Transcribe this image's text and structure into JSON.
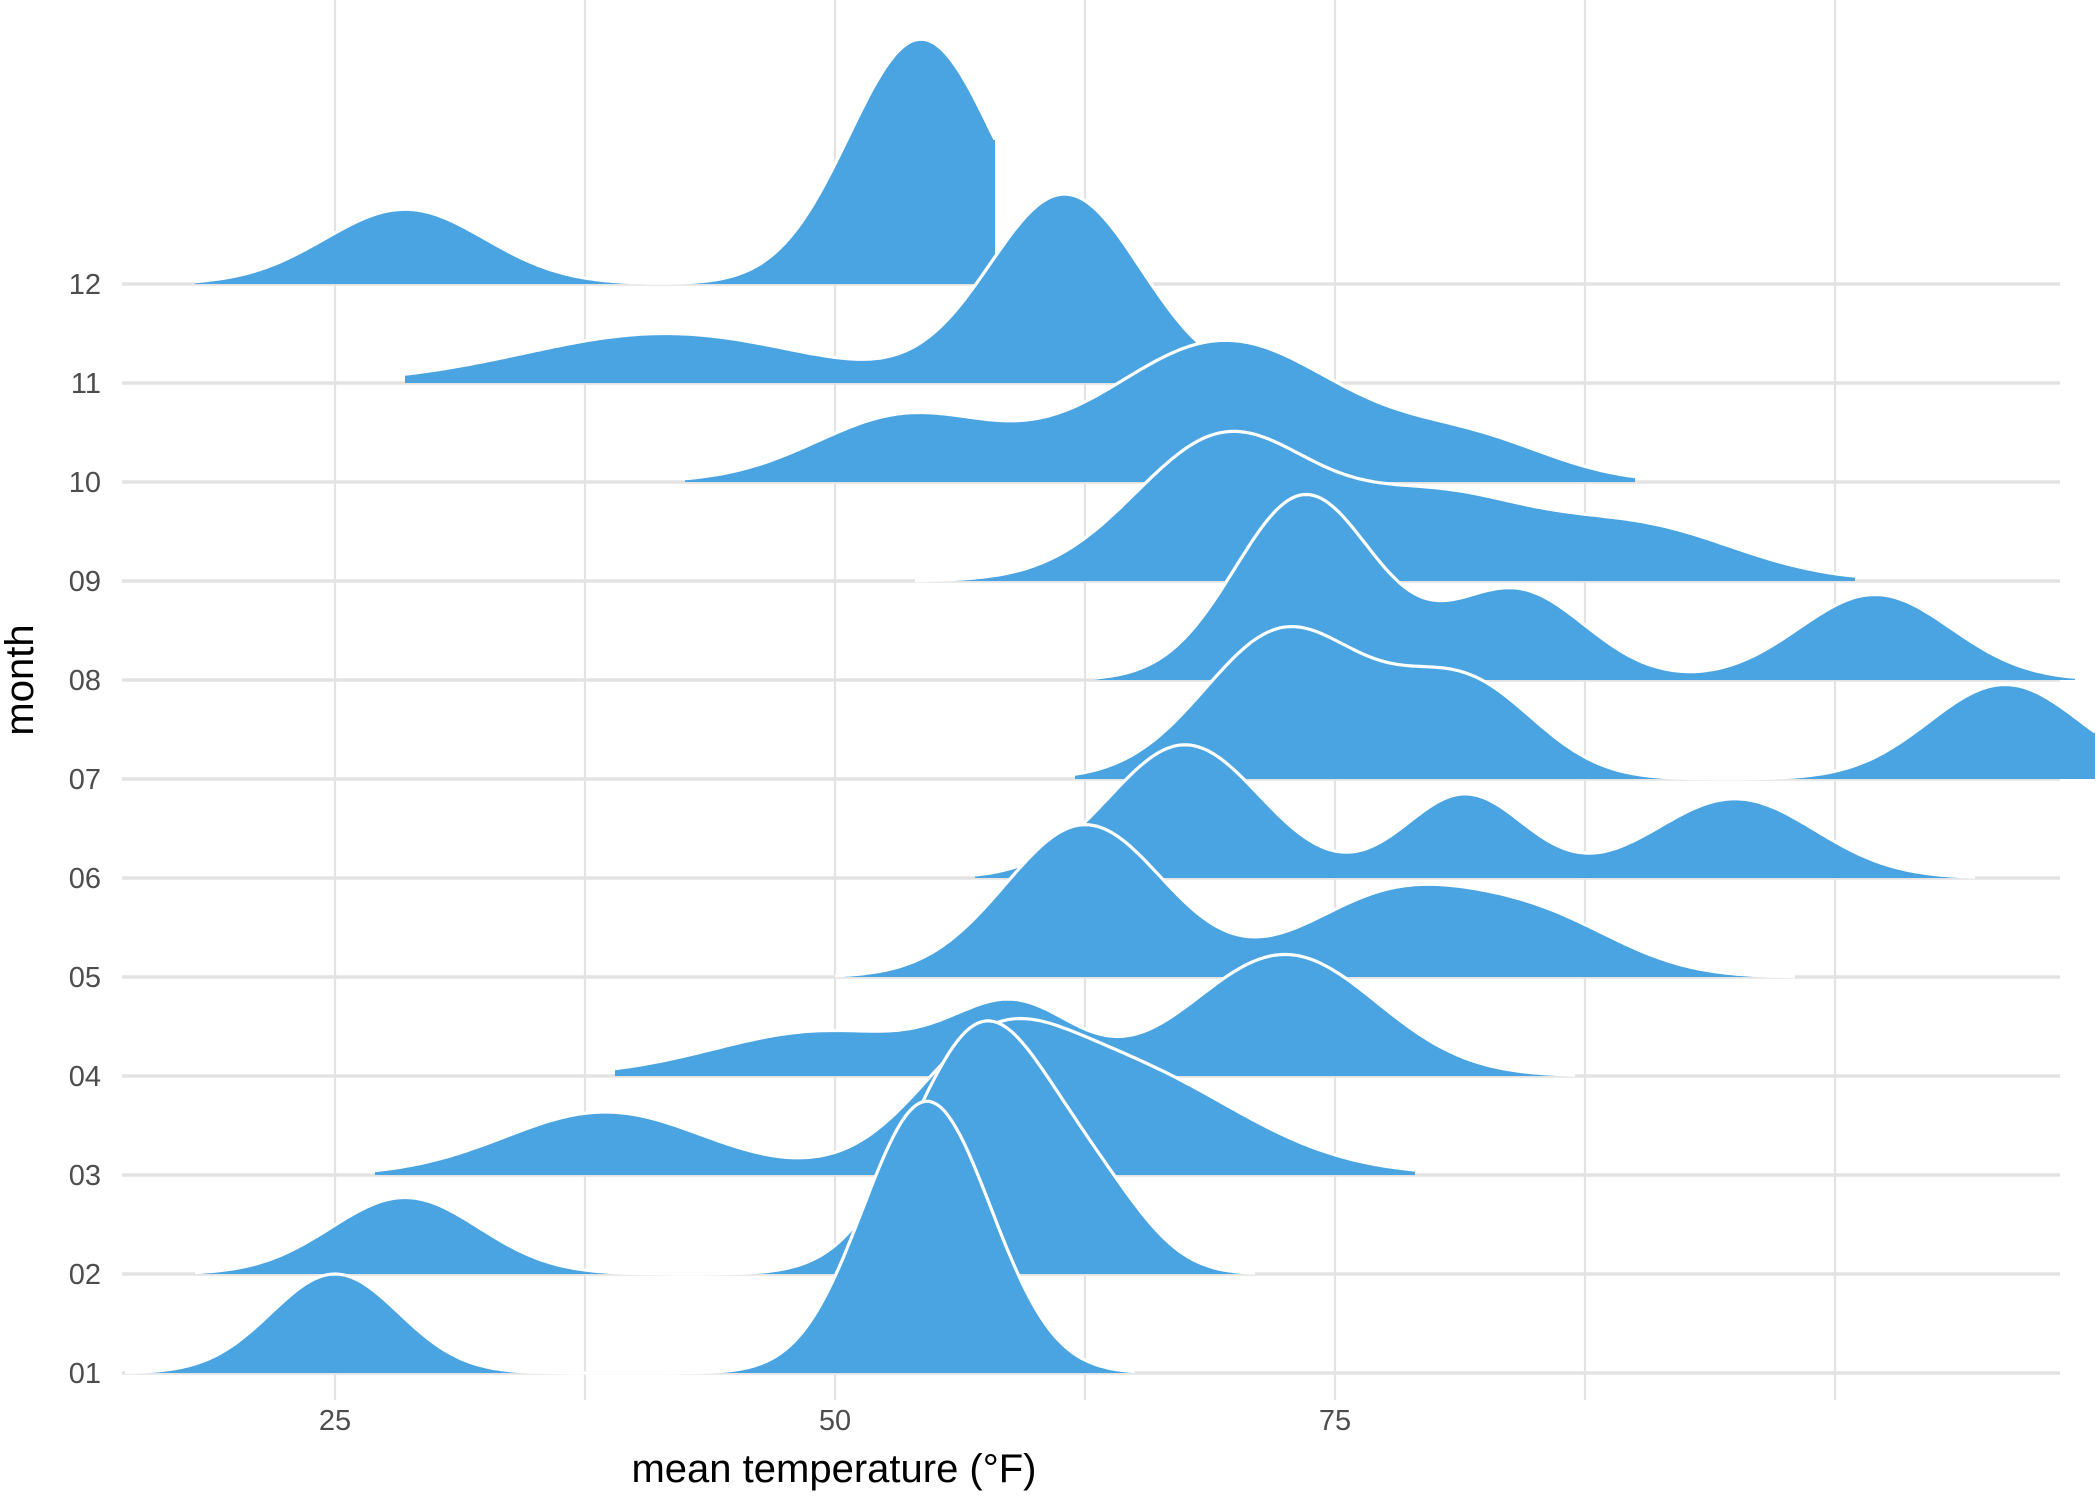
{
  "chart_data": {
    "type": "ridgeline",
    "xlabel": "mean temperature (°F)",
    "ylabel": "month",
    "xlim": [
      10,
      105
    ],
    "x_ticks": [
      25,
      50,
      75
    ],
    "x_gridlines": [
      25,
      37.5,
      50,
      62.5,
      75,
      87.5,
      100
    ],
    "categories": [
      "01",
      "02",
      "03",
      "04",
      "05",
      "06",
      "07",
      "08",
      "09",
      "10",
      "11",
      "12"
    ],
    "fill_color": "#4aa4e2",
    "outline_color": "#ffffff",
    "grid_color": "#e3e3e3",
    "grid": true,
    "series": [
      {
        "category": "01",
        "range": [
          14.5,
          65
        ],
        "peaks": [
          {
            "mean": 25,
            "height": 1.1,
            "sd": 3.2
          },
          {
            "mean": 54.6,
            "height": 3.02,
            "sd": 3.2
          }
        ]
      },
      {
        "category": "02",
        "range": [
          18,
          71
        ],
        "peaks": [
          {
            "mean": 28.5,
            "height": 0.85,
            "sd": 3.7
          },
          {
            "mean": 57.5,
            "height": 2.78,
            "sd": 3.6
          },
          {
            "mean": 63.5,
            "height": 0.55,
            "sd": 2.5
          }
        ]
      },
      {
        "category": "03",
        "range": [
          27,
          79
        ],
        "peaks": [
          {
            "mean": 38.5,
            "height": 0.7,
            "sd": 5.0
          },
          {
            "mean": 57.5,
            "height": 0.85,
            "sd": 3.5
          },
          {
            "mean": 63.5,
            "height": 1.25,
            "sd": 6.2
          }
        ]
      },
      {
        "category": "04",
        "range": [
          39,
          87
        ],
        "peaks": [
          {
            "mean": 49.5,
            "height": 0.5,
            "sd": 5.5
          },
          {
            "mean": 59,
            "height": 0.72,
            "sd": 3.0
          },
          {
            "mean": 72.5,
            "height": 1.35,
            "sd": 4.6
          }
        ]
      },
      {
        "category": "05",
        "range": [
          50,
          98
        ],
        "peaks": [
          {
            "mean": 62.5,
            "height": 1.69,
            "sd": 4.0
          },
          {
            "mean": 78,
            "height": 0.9,
            "sd": 4.5
          },
          {
            "mean": 85.5,
            "height": 0.55,
            "sd": 4.0
          }
        ]
      },
      {
        "category": "06",
        "range": [
          57,
          107
        ],
        "peaks": [
          {
            "mean": 67.5,
            "height": 1.48,
            "sd": 3.8
          },
          {
            "mean": 81.5,
            "height": 0.93,
            "sd": 3.0
          },
          {
            "mean": 95,
            "height": 0.88,
            "sd": 4.0
          }
        ]
      },
      {
        "category": "07",
        "range": [
          62,
          113
        ],
        "peaks": [
          {
            "mean": 72.5,
            "height": 1.65,
            "sd": 4.0
          },
          {
            "mean": 81.5,
            "height": 1.05,
            "sd": 3.5
          },
          {
            "mean": 108.5,
            "height": 1.05,
            "sd": 3.8
          }
        ]
      },
      {
        "category": "08",
        "range": [
          63,
          112
        ],
        "peaks": [
          {
            "mean": 73.5,
            "height": 2.05,
            "sd": 3.5
          },
          {
            "mean": 84,
            "height": 1.0,
            "sd": 3.5
          },
          {
            "mean": 102,
            "height": 0.95,
            "sd": 3.8
          }
        ]
      },
      {
        "category": "09",
        "range": [
          54,
          101
        ],
        "peaks": [
          {
            "mean": 69.5,
            "height": 1.6,
            "sd": 4.5
          },
          {
            "mean": 80,
            "height": 0.85,
            "sd": 4.5
          },
          {
            "mean": 90,
            "height": 0.6,
            "sd": 5.0
          }
        ]
      },
      {
        "category": "10",
        "range": [
          42.5,
          90
        ],
        "peaks": [
          {
            "mean": 53.5,
            "height": 0.72,
            "sd": 4.5
          },
          {
            "mean": 69.5,
            "height": 1.57,
            "sd": 6.0
          },
          {
            "mean": 82,
            "height": 0.4,
            "sd": 4.0
          }
        ]
      },
      {
        "category": "11",
        "range": [
          28.5,
          70
        ],
        "peaks": [
          {
            "mean": 41.5,
            "height": 0.55,
            "sd": 7.0
          },
          {
            "mean": 61.5,
            "height": 2.09,
            "sd": 3.8
          }
        ]
      },
      {
        "category": "12",
        "range": [
          18,
          58
        ],
        "peaks": [
          {
            "mean": 28.5,
            "height": 0.83,
            "sd": 4.0
          },
          {
            "mean": 54.3,
            "height": 2.72,
            "sd": 3.6
          }
        ]
      }
    ]
  }
}
